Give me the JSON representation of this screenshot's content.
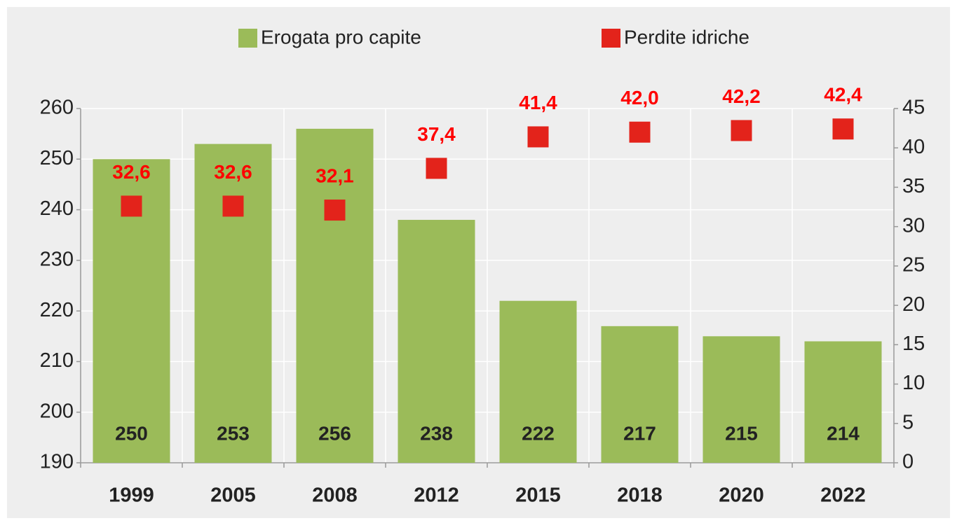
{
  "chart_data": {
    "type": "bar",
    "categories": [
      "1999",
      "2005",
      "2008",
      "2012",
      "2015",
      "2018",
      "2020",
      "2022"
    ],
    "series": [
      {
        "name": "Erogata pro capite",
        "type": "bar",
        "color": "#9bbb59",
        "values": [
          250,
          253,
          256,
          238,
          222,
          217,
          215,
          214
        ]
      },
      {
        "name": "Perdite idriche",
        "type": "scatter",
        "axis": "y2",
        "color": "#e3231b",
        "label_color": "#ff0000",
        "values": [
          32.6,
          32.6,
          32.1,
          37.4,
          41.4,
          42.0,
          42.2,
          42.4
        ],
        "value_labels": [
          "32,6",
          "32,6",
          "32,1",
          "37,4",
          "41,4",
          "42,0",
          "42,2",
          "42,4"
        ]
      }
    ],
    "ylim": [
      190,
      260
    ],
    "yticks": [
      190,
      200,
      210,
      220,
      230,
      240,
      250,
      260
    ],
    "y2lim": [
      0,
      45
    ],
    "y2ticks": [
      0,
      5,
      10,
      15,
      20,
      25,
      30,
      35,
      40,
      45
    ],
    "grid": true,
    "legend": "top"
  }
}
